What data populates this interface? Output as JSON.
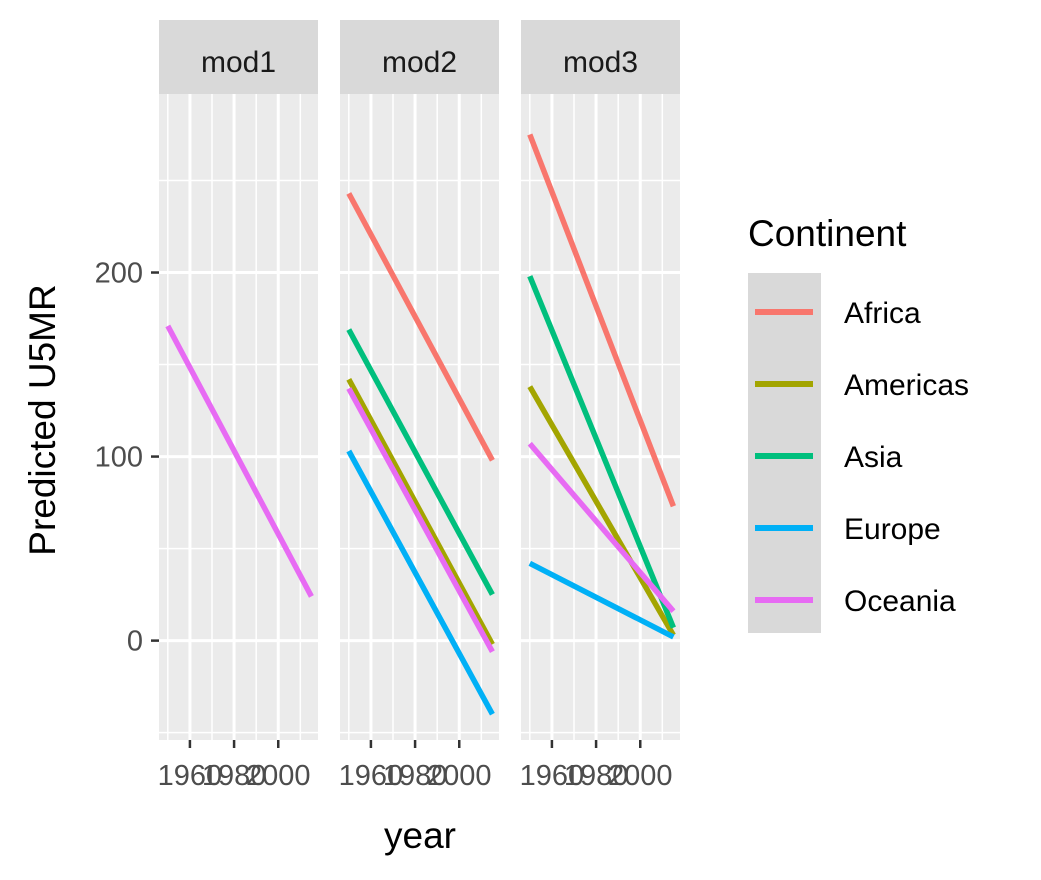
{
  "chart_data": {
    "type": "line",
    "x_axis_label": "year",
    "y_axis_label": "Predicted U5MR",
    "x_domain": [
      1946,
      2018
    ],
    "y_domain": [
      -54,
      297
    ],
    "x_ticks": [
      {
        "value": 1960,
        "label": "1960"
      },
      {
        "value": 1980,
        "label": "1980"
      },
      {
        "value": 2000,
        "label": "2000"
      }
    ],
    "y_ticks": [
      {
        "value": 0,
        "label": "0"
      },
      {
        "value": 100,
        "label": "100"
      },
      {
        "value": 200,
        "label": "200"
      }
    ],
    "grid": true,
    "legend": {
      "title": "Continent",
      "position": "right",
      "entries": [
        {
          "name": "Africa",
          "color": "#F8766D"
        },
        {
          "name": "Americas",
          "color": "#A3A500"
        },
        {
          "name": "Asia",
          "color": "#00BF7D"
        },
        {
          "name": "Europe",
          "color": "#00B0F6"
        },
        {
          "name": "Oceania",
          "color": "#E76BF3"
        }
      ]
    },
    "facets": [
      {
        "label": "mod1",
        "series": [
          {
            "name": "Oceania",
            "x": [
              1950,
              2015
            ],
            "y": [
              171,
              24
            ]
          }
        ]
      },
      {
        "label": "mod2",
        "series": [
          {
            "name": "Africa",
            "x": [
              1950,
              2015
            ],
            "y": [
              243,
              98
            ]
          },
          {
            "name": "Americas",
            "x": [
              1950,
              2015
            ],
            "y": [
              142,
              -2
            ]
          },
          {
            "name": "Asia",
            "x": [
              1950,
              2015
            ],
            "y": [
              169,
              25
            ]
          },
          {
            "name": "Europe",
            "x": [
              1950,
              2015
            ],
            "y": [
              103,
              -40
            ]
          },
          {
            "name": "Oceania",
            "x": [
              1950,
              2015
            ],
            "y": [
              137,
              -6
            ]
          }
        ]
      },
      {
        "label": "mod3",
        "series": [
          {
            "name": "Africa",
            "x": [
              1950,
              2015
            ],
            "y": [
              275,
              73
            ]
          },
          {
            "name": "Americas",
            "x": [
              1950,
              2015
            ],
            "y": [
              138,
              3
            ]
          },
          {
            "name": "Asia",
            "x": [
              1950,
              2015
            ],
            "y": [
              198,
              7
            ]
          },
          {
            "name": "Europe",
            "x": [
              1950,
              2015
            ],
            "y": [
              42,
              2
            ]
          },
          {
            "name": "Oceania",
            "x": [
              1950,
              2015
            ],
            "y": [
              107,
              16
            ]
          }
        ]
      }
    ]
  }
}
